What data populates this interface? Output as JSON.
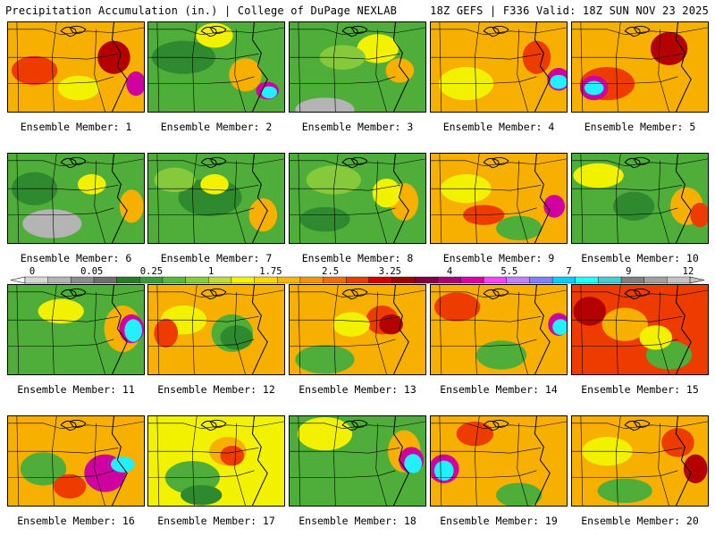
{
  "header": {
    "left": "Precipitation Accumulation (in.) | College of DuPage NEXLAB",
    "right": "18Z GEFS | F336 Valid: 18Z SUN NOV 23 2025"
  },
  "colorbar": {
    "labels": [
      "0",
      "0.05",
      "0.25",
      "1",
      "1.75",
      "2.5",
      "3.25",
      "4",
      "5.5",
      "7",
      "9",
      "12"
    ],
    "colors": [
      "#d8d8d8",
      "#b4b4b4",
      "#8c8c8c",
      "#6e6e6e",
      "#2a7a2a",
      "#3b9a3b",
      "#5cb83c",
      "#88cc3a",
      "#c0dc2c",
      "#f4f400",
      "#f8d800",
      "#f8b800",
      "#f89400",
      "#f46c00",
      "#ec3c00",
      "#d40000",
      "#a00000",
      "#800040",
      "#b00070",
      "#e000a0",
      "#ff40ff",
      "#c080ff",
      "#8080ff",
      "#00d0ff",
      "#20ffff",
      "#40d0d0",
      "#808080",
      "#a0a0a0",
      "#c4c4c4"
    ]
  },
  "map": {
    "palette": {
      "gray": "#b4b4b4",
      "dkgreen": "#2f8a2f",
      "green": "#4fae3a",
      "ltgreen": "#86c93a",
      "yellow": "#f2f200",
      "orange": "#f8b000",
      "red": "#ee3c00",
      "dkred": "#b40000",
      "magenta": "#d000a0",
      "cyan": "#20f0ff"
    },
    "members": [
      {
        "label": "Ensemble Member: 1",
        "base": "orange",
        "patches": [
          [
            "red",
            30,
            55,
            40,
            25
          ],
          [
            "dkred",
            120,
            40,
            25,
            30
          ],
          [
            "magenta",
            145,
            70,
            10,
            20
          ],
          [
            "yellow",
            80,
            75,
            35,
            20
          ]
        ]
      },
      {
        "label": "Ensemble Member: 2",
        "base": "green",
        "patches": [
          [
            "dkgreen",
            40,
            40,
            60,
            30
          ],
          [
            "yellow",
            75,
            15,
            30,
            20
          ],
          [
            "orange",
            110,
            60,
            25,
            30
          ],
          [
            "magenta",
            135,
            78,
            14,
            12
          ],
          [
            "cyan",
            137,
            80,
            6,
            6
          ]
        ]
      },
      {
        "label": "Ensemble Member: 3",
        "base": "green",
        "patches": [
          [
            "gray",
            40,
            100,
            55,
            20
          ],
          [
            "yellow",
            100,
            30,
            35,
            25
          ],
          [
            "orange",
            125,
            55,
            20,
            20
          ],
          [
            "ltgreen",
            60,
            40,
            40,
            20
          ]
        ]
      },
      {
        "label": "Ensemble Member: 4",
        "base": "orange",
        "patches": [
          [
            "yellow",
            40,
            70,
            50,
            30
          ],
          [
            "magenta",
            145,
            65,
            14,
            18
          ],
          [
            "cyan",
            145,
            68,
            8,
            8
          ],
          [
            "red",
            120,
            40,
            20,
            30
          ]
        ]
      },
      {
        "label": "Ensemble Member: 5",
        "base": "orange",
        "patches": [
          [
            "red",
            40,
            70,
            50,
            30
          ],
          [
            "magenta",
            25,
            75,
            20,
            20
          ],
          [
            "cyan",
            25,
            75,
            10,
            8
          ],
          [
            "dkred",
            110,
            30,
            30,
            30
          ]
        ]
      },
      {
        "label": "Ensemble Member: 6",
        "base": "green",
        "patches": [
          [
            "gray",
            50,
            80,
            55,
            25
          ],
          [
            "dkgreen",
            30,
            40,
            40,
            30
          ],
          [
            "orange",
            140,
            60,
            15,
            30
          ],
          [
            "yellow",
            95,
            35,
            20,
            15
          ]
        ]
      },
      {
        "label": "Ensemble Member: 7",
        "base": "green",
        "patches": [
          [
            "dkgreen",
            70,
            50,
            60,
            35
          ],
          [
            "yellow",
            75,
            35,
            20,
            15
          ],
          [
            "orange",
            130,
            70,
            20,
            30
          ],
          [
            "ltgreen",
            30,
            30,
            35,
            20
          ]
        ]
      },
      {
        "label": "Ensemble Member: 8",
        "base": "green",
        "patches": [
          [
            "ltgreen",
            50,
            30,
            50,
            25
          ],
          [
            "orange",
            130,
            55,
            20,
            35
          ],
          [
            "yellow",
            110,
            45,
            20,
            25
          ],
          [
            "dkgreen",
            40,
            75,
            45,
            20
          ]
        ]
      },
      {
        "label": "Ensemble Member: 9",
        "base": "orange",
        "patches": [
          [
            "yellow",
            40,
            40,
            45,
            25
          ],
          [
            "red",
            60,
            70,
            35,
            15
          ],
          [
            "magenta",
            140,
            60,
            12,
            18
          ],
          [
            "green",
            100,
            85,
            40,
            20
          ]
        ]
      },
      {
        "label": "Ensemble Member: 10",
        "base": "green",
        "patches": [
          [
            "yellow",
            30,
            25,
            45,
            20
          ],
          [
            "orange",
            130,
            60,
            25,
            35
          ],
          [
            "dkgreen",
            70,
            60,
            35,
            25
          ],
          [
            "red",
            145,
            70,
            10,
            20
          ]
        ]
      },
      {
        "label": "Ensemble Member: 11",
        "base": "green",
        "patches": [
          [
            "orange",
            130,
            50,
            30,
            45
          ],
          [
            "magenta",
            140,
            50,
            16,
            25
          ],
          [
            "cyan",
            142,
            52,
            8,
            18
          ],
          [
            "yellow",
            60,
            30,
            40,
            20
          ]
        ]
      },
      {
        "label": "Ensemble Member: 12",
        "base": "orange",
        "patches": [
          [
            "green",
            95,
            55,
            35,
            35
          ],
          [
            "dkgreen",
            100,
            60,
            25,
            20
          ],
          [
            "yellow",
            40,
            40,
            40,
            25
          ],
          [
            "red",
            20,
            55,
            15,
            25
          ]
        ]
      },
      {
        "label": "Ensemble Member: 13",
        "base": "orange",
        "patches": [
          [
            "green",
            40,
            85,
            55,
            25
          ],
          [
            "red",
            105,
            40,
            25,
            25
          ],
          [
            "dkred",
            115,
            45,
            15,
            15
          ],
          [
            "yellow",
            70,
            45,
            30,
            20
          ]
        ]
      },
      {
        "label": "Ensemble Member: 14",
        "base": "orange",
        "patches": [
          [
            "red",
            30,
            25,
            40,
            25
          ],
          [
            "magenta",
            145,
            45,
            12,
            18
          ],
          [
            "cyan",
            147,
            48,
            6,
            10
          ],
          [
            "green",
            80,
            80,
            45,
            25
          ]
        ]
      },
      {
        "label": "Ensemble Member: 15",
        "base": "red",
        "patches": [
          [
            "orange",
            60,
            45,
            40,
            30
          ],
          [
            "green",
            110,
            80,
            40,
            25
          ],
          [
            "dkred",
            20,
            30,
            25,
            25
          ],
          [
            "yellow",
            95,
            60,
            25,
            20
          ]
        ]
      },
      {
        "label": "Ensemble Member: 16",
        "base": "orange",
        "patches": [
          [
            "magenta",
            110,
            65,
            35,
            35
          ],
          [
            "cyan",
            130,
            55,
            15,
            10
          ],
          [
            "green",
            40,
            60,
            40,
            30
          ],
          [
            "red",
            70,
            80,
            25,
            20
          ]
        ]
      },
      {
        "label": "Ensemble Member: 17",
        "base": "yellow",
        "patches": [
          [
            "green",
            50,
            70,
            50,
            30
          ],
          [
            "orange",
            90,
            40,
            30,
            25
          ],
          [
            "red",
            95,
            45,
            15,
            15
          ],
          [
            "dkgreen",
            60,
            90,
            35,
            15
          ]
        ]
      },
      {
        "label": "Ensemble Member: 18",
        "base": "green",
        "patches": [
          [
            "yellow",
            40,
            20,
            50,
            30
          ],
          [
            "orange",
            130,
            40,
            25,
            40
          ],
          [
            "magenta",
            138,
            50,
            16,
            22
          ],
          [
            "cyan",
            140,
            54,
            8,
            14
          ]
        ]
      },
      {
        "label": "Ensemble Member: 19",
        "base": "orange",
        "patches": [
          [
            "magenta",
            15,
            60,
            22,
            25
          ],
          [
            "cyan",
            15,
            62,
            10,
            15
          ],
          [
            "green",
            100,
            90,
            40,
            20
          ],
          [
            "red",
            50,
            20,
            30,
            20
          ]
        ]
      },
      {
        "label": "Ensemble Member: 20",
        "base": "orange",
        "patches": [
          [
            "yellow",
            40,
            40,
            45,
            25
          ],
          [
            "green",
            60,
            85,
            50,
            20
          ],
          [
            "red",
            120,
            30,
            25,
            25
          ],
          [
            "dkred",
            140,
            60,
            15,
            25
          ]
        ]
      }
    ]
  }
}
